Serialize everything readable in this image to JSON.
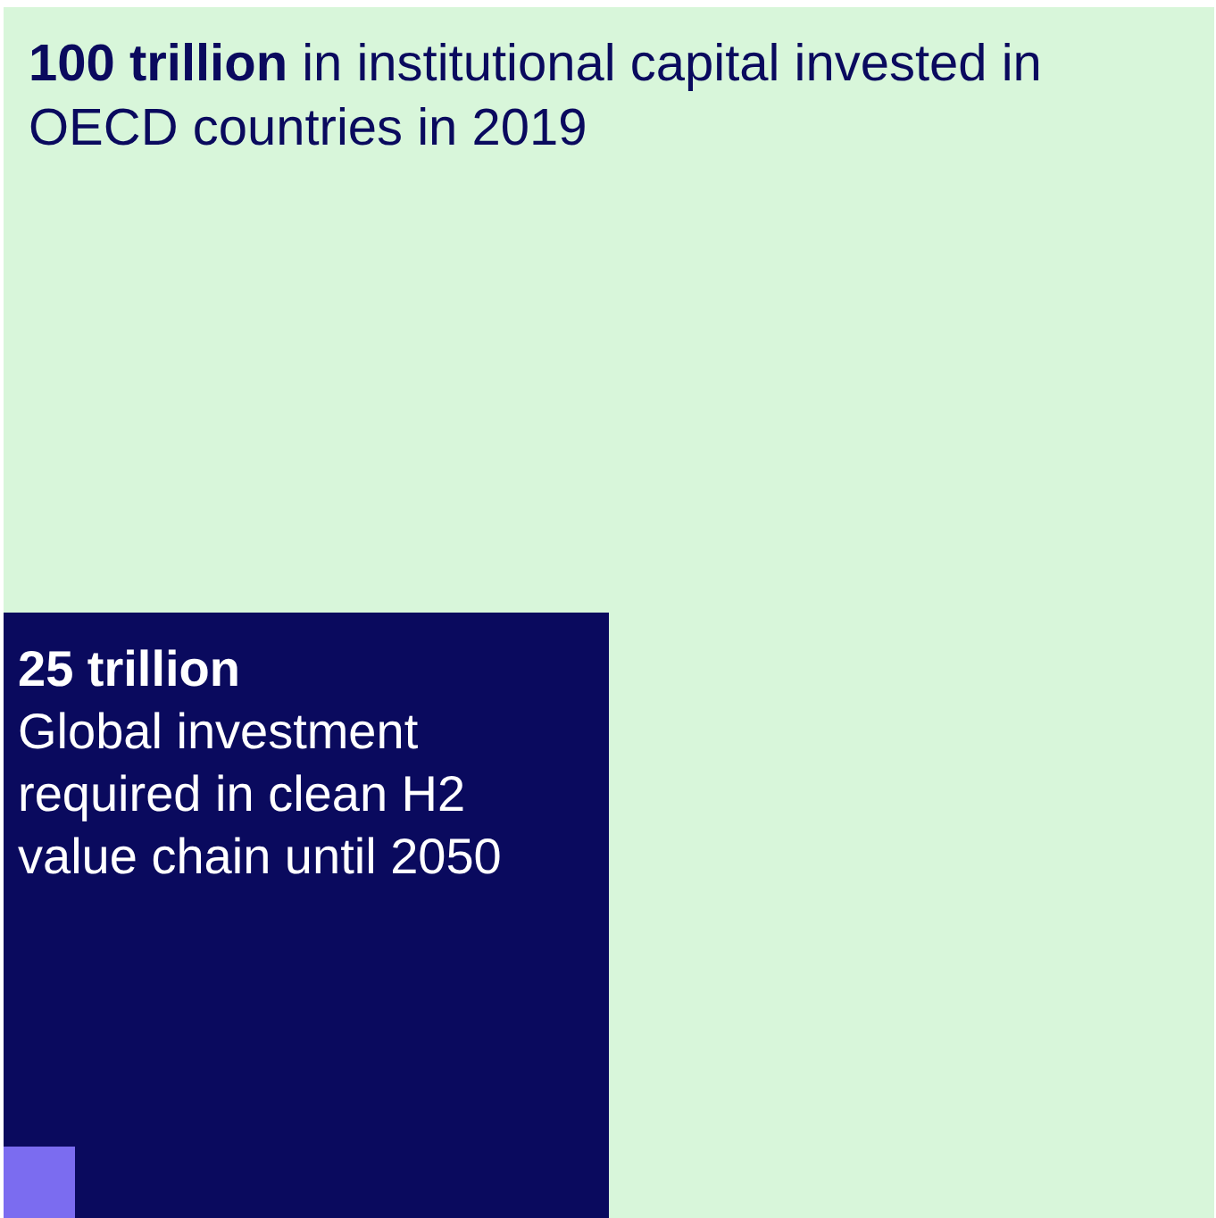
{
  "chart_data": {
    "type": "other",
    "categories": [
      "in institutional capital invested in OECD countries in 2019",
      "Global investment required in clean H2 value chain until 2050"
    ],
    "values": [
      100,
      25
    ],
    "value_labels": [
      "100 trillion",
      "25 trillion"
    ],
    "colors": [
      "#d8f6da",
      "#0a0a5e"
    ]
  }
}
